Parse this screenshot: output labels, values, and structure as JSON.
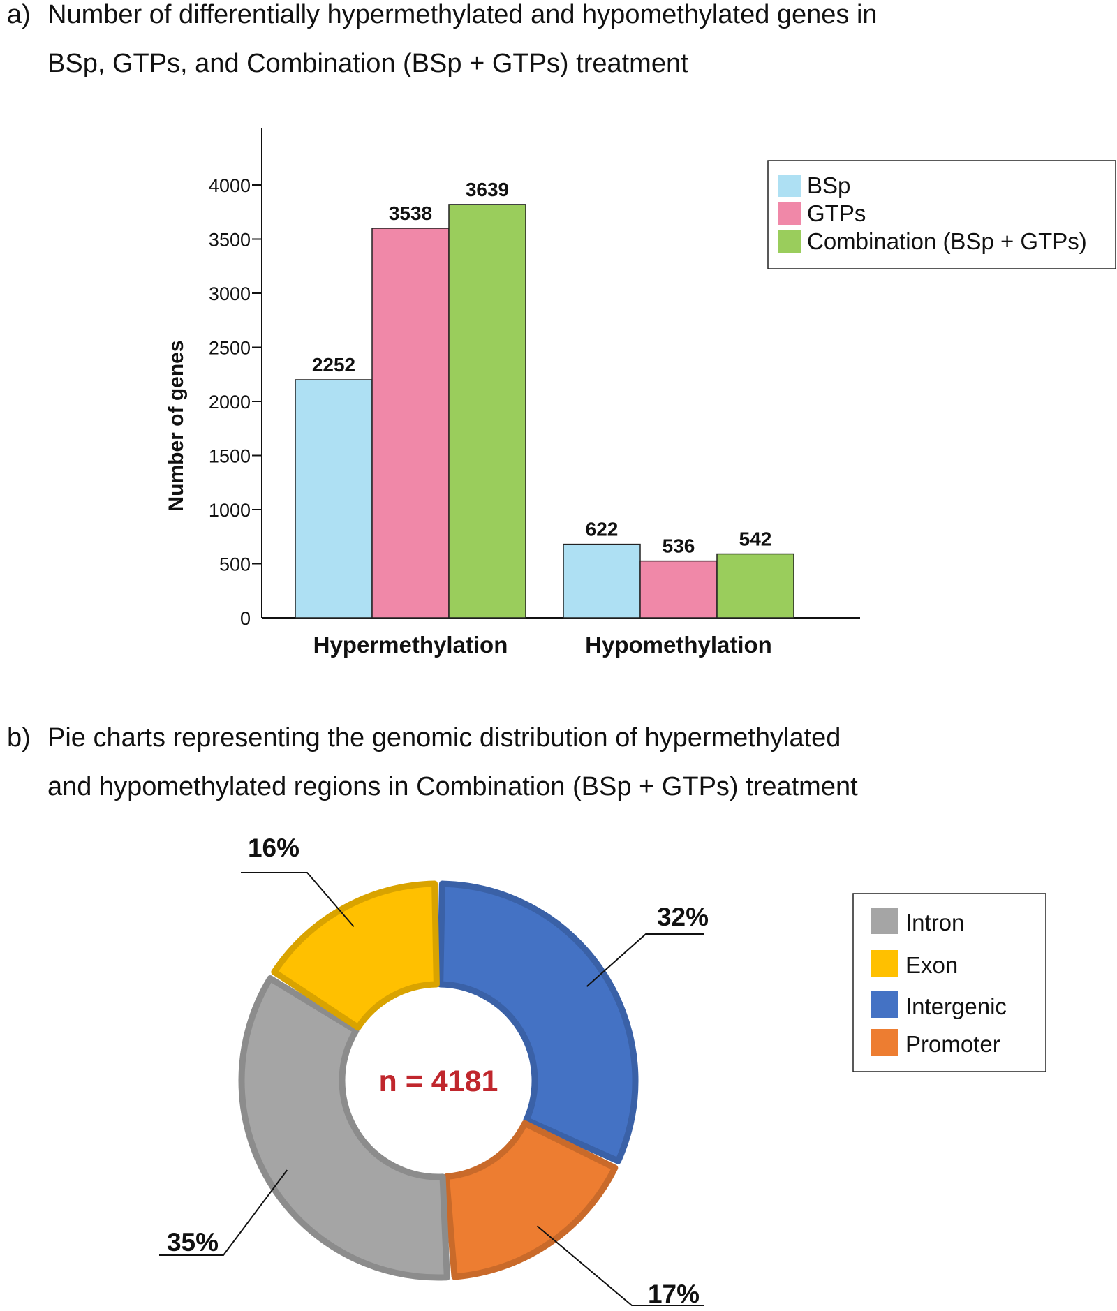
{
  "panel_a": {
    "label": "a)",
    "title_line1": "Number of differentially hypermethylated and hypomethylated genes in",
    "title_line2": "BSp, GTPs, and Combination (BSp + GTPs) treatment"
  },
  "panel_b": {
    "label": "b)",
    "title_line1": "Pie charts representing the genomic distribution of hypermethylated",
    "title_line2": "and hypomethylated regions in Combination (BSp + GTPs) treatment"
  },
  "chart_data": [
    {
      "type": "bar",
      "title": "Number of differentially hypermethylated and hypomethylated genes in BSp, GTPs, and Combination (BSp + GTPs) treatment",
      "categories": [
        "Hypermethylation",
        "Hypomethylation"
      ],
      "series": [
        {
          "name": "BSp",
          "color": "#aee0f3",
          "values": [
            2252,
            622
          ],
          "heights": [
            2200,
            680
          ]
        },
        {
          "name": "GTPs",
          "color": "#f088a8",
          "values": [
            3538,
            536
          ],
          "heights": [
            3600,
            525
          ]
        },
        {
          "name": "Combination (BSp + GTPs)",
          "color": "#9acd5c",
          "values": [
            3639,
            542
          ],
          "heights": [
            3820,
            590
          ]
        }
      ],
      "ylabel": "Number of genes",
      "xlabel": "",
      "yticks": [
        0,
        500,
        1000,
        1500,
        2000,
        2500,
        3000,
        3500,
        4000
      ],
      "ylim": [
        0,
        4400
      ],
      "legend": "top-right",
      "grid": false
    },
    {
      "type": "pie",
      "style": "donut",
      "center_label": "n = 4181",
      "center_color": "#c0272d",
      "legend_order": [
        "Intron",
        "Exon",
        "Intergenic",
        "Promoter"
      ],
      "slices": [
        {
          "label": "Intergenic",
          "value": 32,
          "display": "32%",
          "color": "#4472c4"
        },
        {
          "label": "Promoter",
          "value": 17,
          "display": "17%",
          "color": "#ed7d31"
        },
        {
          "label": "Intron",
          "value": 35,
          "display": "35%",
          "color": "#a5a5a5"
        },
        {
          "label": "Exon",
          "value": 16,
          "display": "16%",
          "color": "#ffc000"
        }
      ],
      "legend": "right"
    }
  ]
}
